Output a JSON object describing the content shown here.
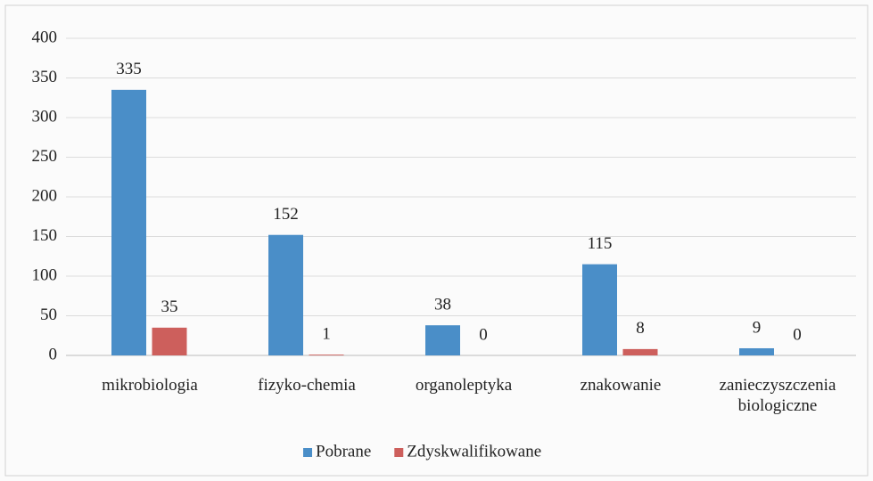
{
  "chart_data": {
    "type": "bar",
    "categories": [
      "mikrobiologia",
      "fizyko-chemia",
      "organoleptyka",
      "znakowanie",
      "zanieczyszczenia biologiczne"
    ],
    "series": [
      {
        "name": "Pobrane",
        "color": "#4a8ec8",
        "values": [
          335,
          152,
          38,
          115,
          9
        ]
      },
      {
        "name": "Zdyskwalifikowane",
        "color": "#cd5f5c",
        "values": [
          35,
          1,
          0,
          8,
          0
        ]
      }
    ],
    "ylim": [
      0,
      400
    ],
    "yticks": [
      0,
      50,
      100,
      150,
      200,
      250,
      300,
      350,
      400
    ],
    "grid": true,
    "legend": "bottom"
  }
}
